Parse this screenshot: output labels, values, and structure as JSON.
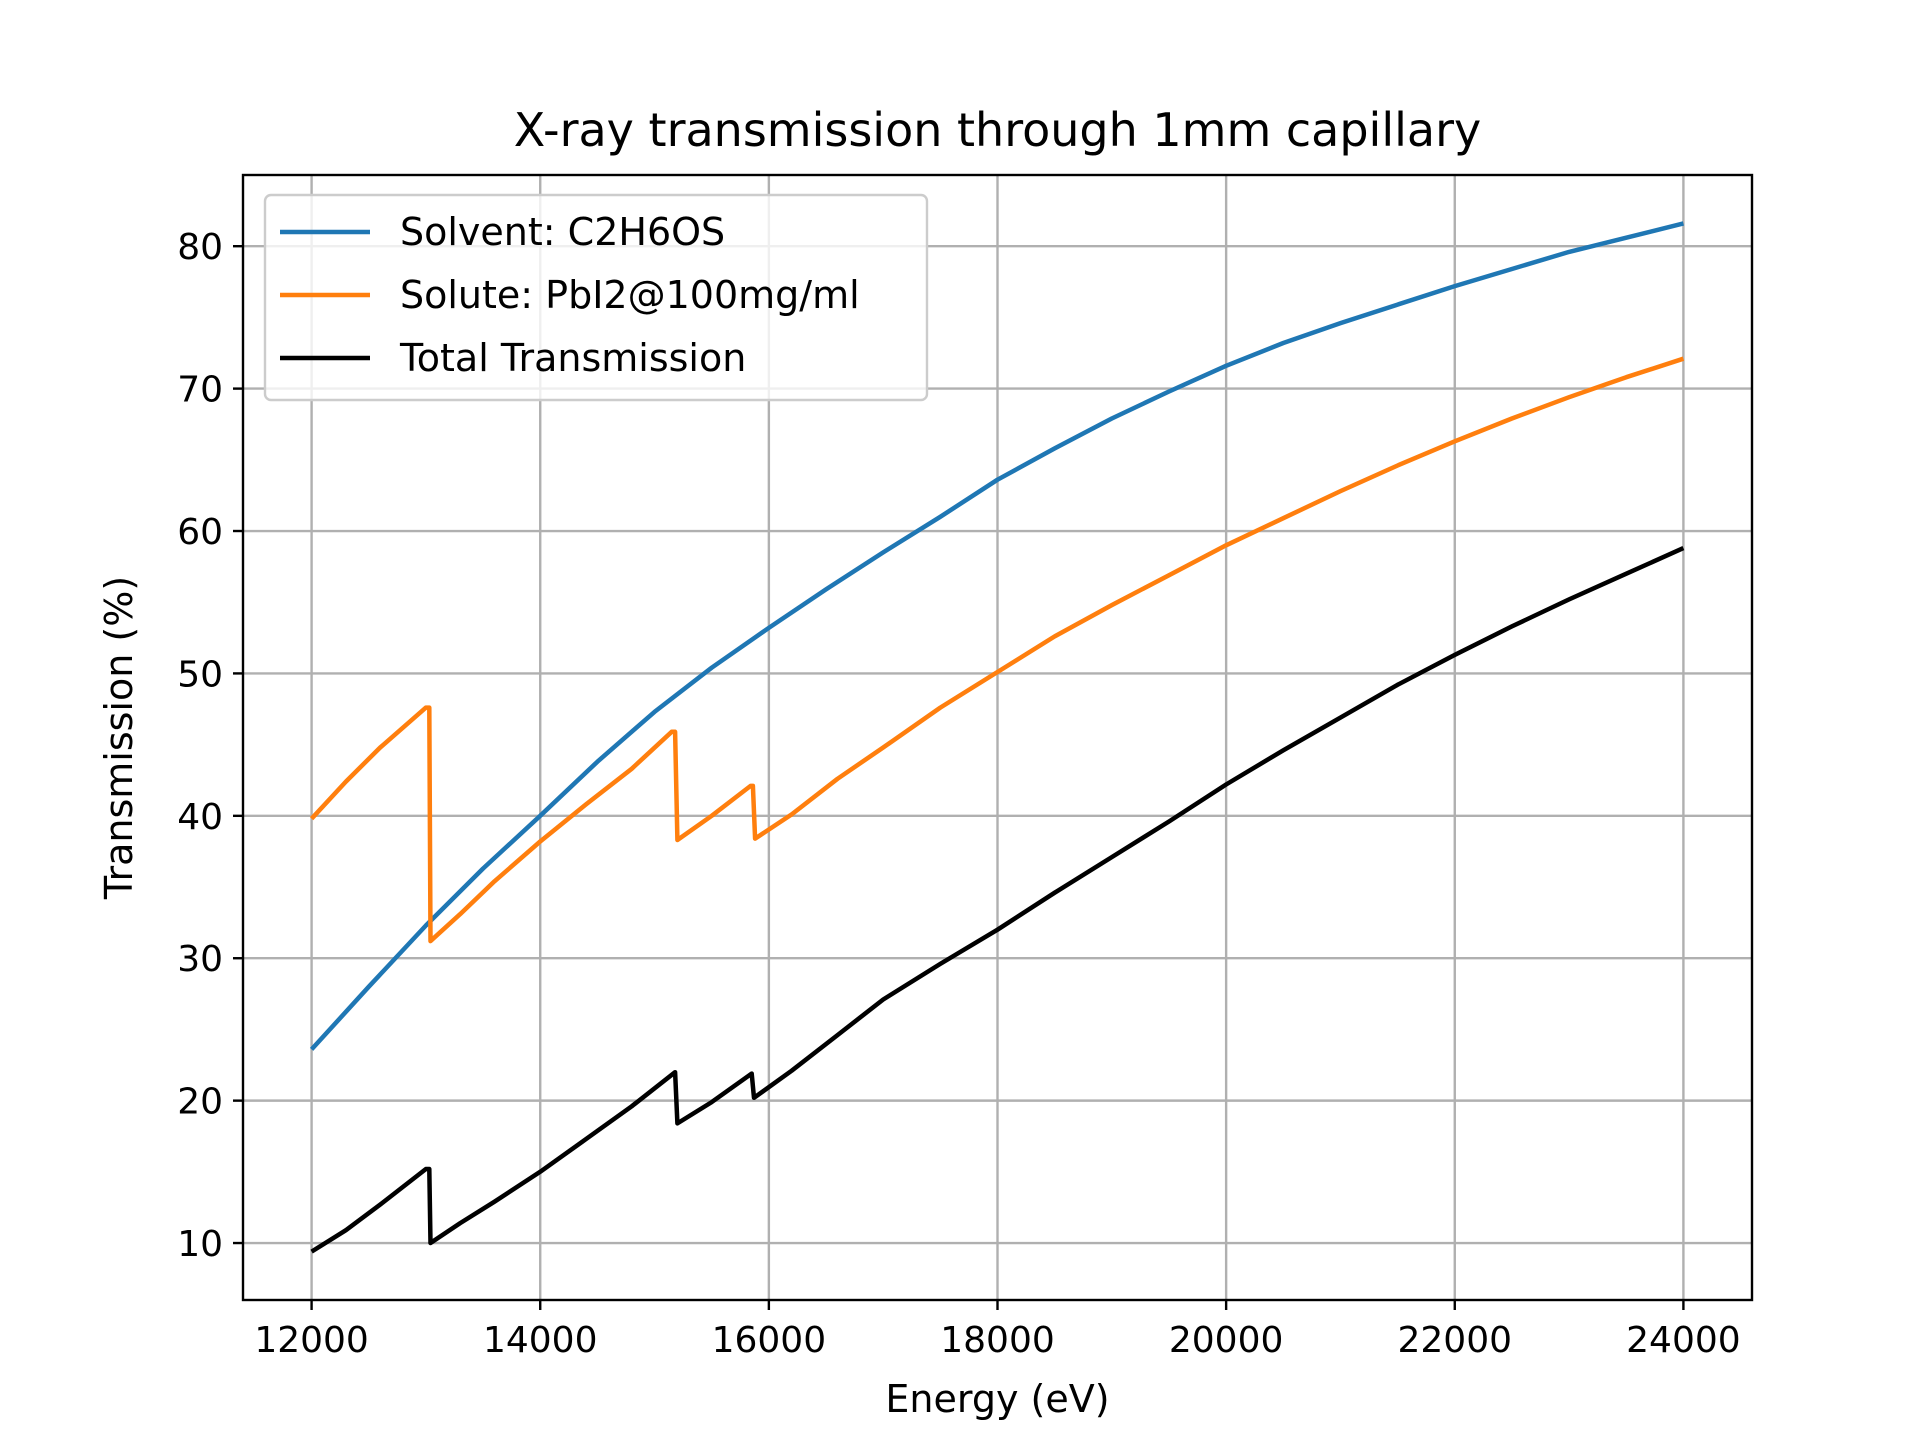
{
  "chart_data": {
    "type": "line",
    "title": "X-ray transmission through 1mm capillary",
    "xlabel": "Energy (eV)",
    "ylabel": "Transmission (%)",
    "xlim": [
      11400,
      24600
    ],
    "ylim": [
      6,
      85
    ],
    "xticks": [
      12000,
      14000,
      16000,
      18000,
      20000,
      22000,
      24000
    ],
    "yticks": [
      10,
      20,
      30,
      40,
      50,
      60,
      70,
      80
    ],
    "xtick_labels": [
      "12000",
      "14000",
      "16000",
      "18000",
      "20000",
      "22000",
      "24000"
    ],
    "ytick_labels": [
      "10",
      "20",
      "30",
      "40",
      "50",
      "60",
      "70",
      "80"
    ],
    "grid": true,
    "legend": "upper-left",
    "series": [
      {
        "name": "Solvent: C2H6OS",
        "color": "#1f77b4",
        "points": [
          [
            12000,
            23.6
          ],
          [
            12500,
            28.0
          ],
          [
            13000,
            32.3
          ],
          [
            13500,
            36.3
          ],
          [
            14000,
            40.0
          ],
          [
            14500,
            43.8
          ],
          [
            15000,
            47.3
          ],
          [
            15500,
            50.4
          ],
          [
            16000,
            53.2
          ],
          [
            16500,
            55.9
          ],
          [
            17000,
            58.5
          ],
          [
            17500,
            61.0
          ],
          [
            18000,
            63.6
          ],
          [
            18500,
            65.8
          ],
          [
            19000,
            67.9
          ],
          [
            19500,
            69.8
          ],
          [
            20000,
            71.6
          ],
          [
            20500,
            73.2
          ],
          [
            21000,
            74.6
          ],
          [
            21500,
            75.9
          ],
          [
            22000,
            77.2
          ],
          [
            22500,
            78.4
          ],
          [
            23000,
            79.6
          ],
          [
            23500,
            80.6
          ],
          [
            24000,
            81.6
          ]
        ]
      },
      {
        "name": "Solute: PbI2@100mg/ml",
        "color": "#ff7f0e",
        "points": [
          [
            12000,
            39.8
          ],
          [
            12300,
            42.4
          ],
          [
            12600,
            44.8
          ],
          [
            13000,
            47.6
          ],
          [
            13030,
            47.6
          ],
          [
            13040,
            31.2
          ],
          [
            13300,
            33.1
          ],
          [
            13600,
            35.4
          ],
          [
            14000,
            38.2
          ],
          [
            14400,
            40.8
          ],
          [
            14800,
            43.3
          ],
          [
            15150,
            45.9
          ],
          [
            15180,
            45.9
          ],
          [
            15200,
            38.3
          ],
          [
            15500,
            40.0
          ],
          [
            15840,
            42.1
          ],
          [
            15860,
            42.1
          ],
          [
            15880,
            38.4
          ],
          [
            16200,
            40.1
          ],
          [
            16600,
            42.6
          ],
          [
            17000,
            44.8
          ],
          [
            17500,
            47.6
          ],
          [
            18000,
            50.1
          ],
          [
            18500,
            52.6
          ],
          [
            19000,
            54.8
          ],
          [
            19500,
            56.9
          ],
          [
            20000,
            59.0
          ],
          [
            20500,
            60.9
          ],
          [
            21000,
            62.8
          ],
          [
            21500,
            64.6
          ],
          [
            22000,
            66.3
          ],
          [
            22500,
            67.9
          ],
          [
            23000,
            69.4
          ],
          [
            23500,
            70.8
          ],
          [
            24000,
            72.1
          ]
        ]
      },
      {
        "name": "Total Transmission",
        "color": "#000000",
        "points": [
          [
            12000,
            9.4
          ],
          [
            12300,
            10.9
          ],
          [
            12600,
            12.7
          ],
          [
            13000,
            15.2
          ],
          [
            13030,
            15.2
          ],
          [
            13040,
            10.0
          ],
          [
            13300,
            11.4
          ],
          [
            13600,
            12.9
          ],
          [
            14000,
            15.0
          ],
          [
            14400,
            17.3
          ],
          [
            14800,
            19.6
          ],
          [
            15180,
            22.0
          ],
          [
            15200,
            18.4
          ],
          [
            15500,
            19.9
          ],
          [
            15850,
            21.9
          ],
          [
            15870,
            20.2
          ],
          [
            16200,
            22.1
          ],
          [
            16600,
            24.6
          ],
          [
            17000,
            27.1
          ],
          [
            17500,
            29.6
          ],
          [
            18000,
            32.0
          ],
          [
            18500,
            34.6
          ],
          [
            19000,
            37.1
          ],
          [
            19500,
            39.6
          ],
          [
            20000,
            42.2
          ],
          [
            20500,
            44.6
          ],
          [
            21000,
            46.9
          ],
          [
            21500,
            49.2
          ],
          [
            22000,
            51.3
          ],
          [
            22500,
            53.3
          ],
          [
            23000,
            55.2
          ],
          [
            23500,
            57.0
          ],
          [
            24000,
            58.8
          ]
        ]
      }
    ]
  }
}
